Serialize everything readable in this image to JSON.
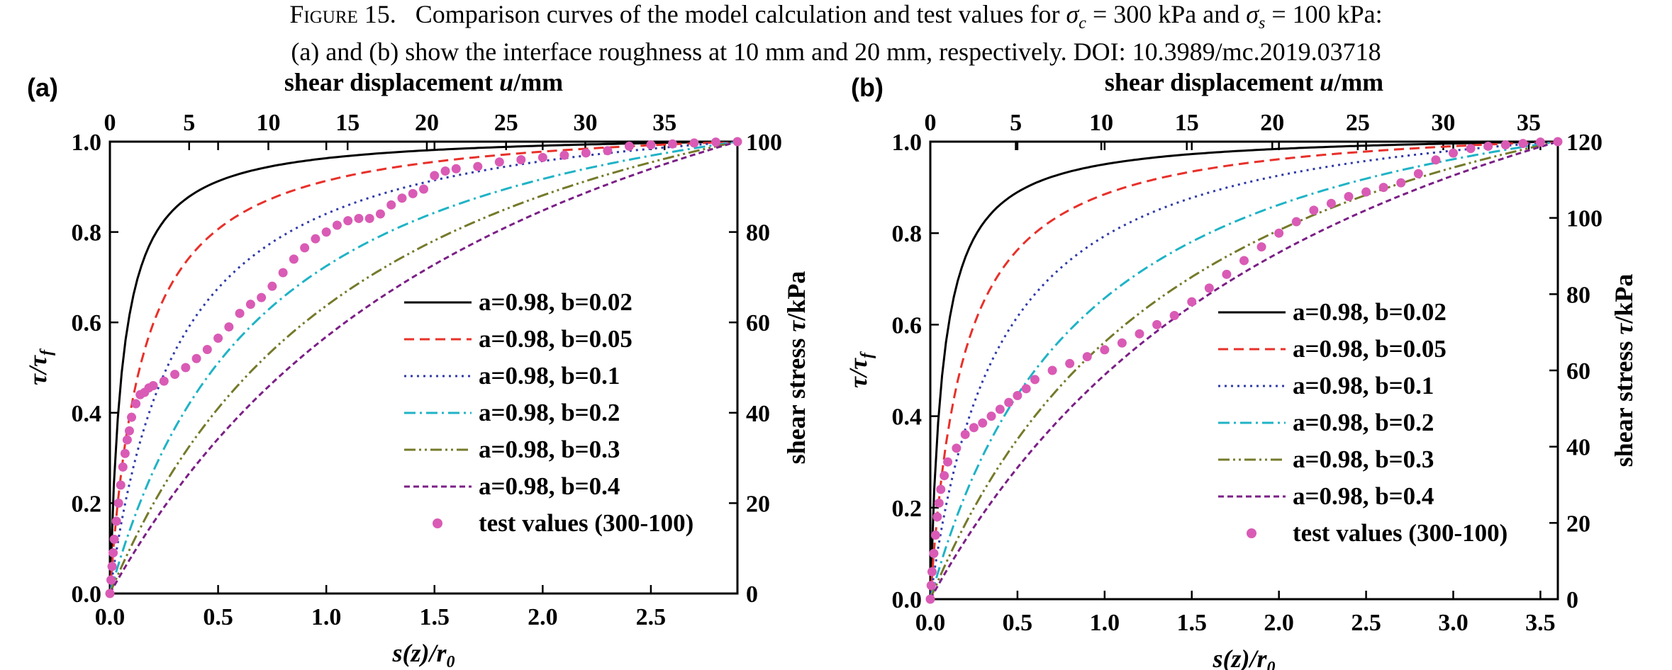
{
  "caption": {
    "fig_label": "Figure 15.",
    "line1_pre": "Comparison curves of the model calculation and test values for ",
    "sym_sigma": "σ",
    "sub_c": "c",
    "mid1": " = 300 kPa and ",
    "sub_s": "s",
    "line1_post": " = 100 kPa:",
    "line2": "(a) and (b) show the interface roughness at 10 mm and 20 mm, respectively.  DOI: 10.3989/mc.2019.03718"
  },
  "chart_data": [
    {
      "panel_label": "(a)",
      "type": "line",
      "xlabel": "s(z)/r",
      "xlabel_sub": "0",
      "ylabel": "τ/τ",
      "ylabel_sub": "f",
      "top_xlabel_pre": "shear displacement ",
      "top_xlabel_var": "u",
      "top_xlabel_unit": "/mm",
      "right_ylabel_pre": "shear stress ",
      "right_ylabel_var": "τ",
      "right_ylabel_unit": "/kPa",
      "xlim": [
        0,
        2.9
      ],
      "ylim": [
        0,
        1.0
      ],
      "xticks": [
        "0.0",
        "0.5",
        "1.0",
        "1.5",
        "2.0",
        "2.5"
      ],
      "yticks": [
        "0.0",
        "0.2",
        "0.4",
        "0.6",
        "0.8",
        "1.0"
      ],
      "top_xlim": [
        0,
        39.6
      ],
      "top_xticks": [
        "0",
        "5",
        "10",
        "15",
        "20",
        "25",
        "30",
        "35"
      ],
      "right_ylim": [
        0,
        100
      ],
      "right_yticks": [
        "0",
        "20",
        "40",
        "60",
        "80",
        "100"
      ],
      "legend_position": "center-right",
      "series": [
        {
          "name": "a=0.98, b=0.02",
          "color": "#000000",
          "dash": "solid",
          "model": {
            "a": 0.98,
            "b": 0.02
          }
        },
        {
          "name": "a=0.98, b=0.05",
          "color": "#e8302a",
          "dash": "dash",
          "model": {
            "a": 0.98,
            "b": 0.05
          }
        },
        {
          "name": "a=0.98, b=0.1",
          "color": "#2f3aa8",
          "dash": "dot",
          "model": {
            "a": 0.98,
            "b": 0.1
          }
        },
        {
          "name": "a=0.98, b=0.2",
          "color": "#1fb3c6",
          "dash": "dashdot",
          "model": {
            "a": 0.98,
            "b": 0.2
          }
        },
        {
          "name": "a=0.98, b=0.3",
          "color": "#757a2a",
          "dash": "dashdotdot",
          "model": {
            "a": 0.98,
            "b": 0.3
          }
        },
        {
          "name": "a=0.98, b=0.4",
          "color": "#7b1f86",
          "dash": "shortdash",
          "model": {
            "a": 0.98,
            "b": 0.4
          }
        }
      ],
      "scatter": {
        "name": "test values (300-100)",
        "color": "#d95bb5",
        "x": [
          0.0,
          0.005,
          0.01,
          0.015,
          0.02,
          0.03,
          0.04,
          0.05,
          0.06,
          0.07,
          0.08,
          0.09,
          0.1,
          0.12,
          0.14,
          0.16,
          0.18,
          0.2,
          0.25,
          0.3,
          0.35,
          0.4,
          0.45,
          0.5,
          0.55,
          0.6,
          0.65,
          0.7,
          0.75,
          0.8,
          0.85,
          0.9,
          0.95,
          1.0,
          1.05,
          1.1,
          1.15,
          1.2,
          1.25,
          1.3,
          1.35,
          1.4,
          1.45,
          1.5,
          1.55,
          1.6,
          1.7,
          1.8,
          1.9,
          2.0,
          2.1,
          2.2,
          2.3,
          2.4,
          2.5,
          2.6,
          2.7,
          2.8,
          2.9
        ],
        "y": [
          0.0,
          0.03,
          0.06,
          0.09,
          0.12,
          0.16,
          0.2,
          0.24,
          0.28,
          0.31,
          0.34,
          0.36,
          0.39,
          0.42,
          0.44,
          0.445,
          0.455,
          0.46,
          0.47,
          0.485,
          0.5,
          0.52,
          0.54,
          0.565,
          0.59,
          0.62,
          0.64,
          0.655,
          0.68,
          0.71,
          0.74,
          0.765,
          0.785,
          0.8,
          0.815,
          0.825,
          0.83,
          0.83,
          0.84,
          0.86,
          0.875,
          0.885,
          0.895,
          0.925,
          0.935,
          0.94,
          0.945,
          0.955,
          0.96,
          0.965,
          0.97,
          0.975,
          0.98,
          0.99,
          0.993,
          0.995,
          0.997,
          0.999,
          1.0
        ]
      }
    },
    {
      "panel_label": "(b)",
      "type": "line",
      "xlabel": "s(z)/r",
      "xlabel_sub": "0",
      "ylabel": "τ/τ",
      "ylabel_sub": "f",
      "top_xlabel_pre": "shear displacement ",
      "top_xlabel_var": "u",
      "top_xlabel_unit": "/mm",
      "right_ylabel_pre": "shear stress ",
      "right_ylabel_var": "τ",
      "right_ylabel_unit": "/kPa",
      "xlim": [
        0,
        3.6
      ],
      "ylim": [
        0,
        1.0
      ],
      "xticks": [
        "0.0",
        "0.5",
        "1.0",
        "1.5",
        "2.0",
        "2.5",
        "3.0",
        "3.5"
      ],
      "yticks": [
        "0.0",
        "0.2",
        "0.4",
        "0.6",
        "0.8",
        "1.0"
      ],
      "top_xlim": [
        0,
        36.7
      ],
      "top_xticks": [
        "0",
        "5",
        "10",
        "15",
        "20",
        "25",
        "30",
        "35"
      ],
      "right_ylim": [
        0,
        120
      ],
      "right_yticks": [
        "0",
        "20",
        "40",
        "60",
        "80",
        "100",
        "120"
      ],
      "legend_position": "center-right",
      "series": [
        {
          "name": "a=0.98, b=0.02",
          "color": "#000000",
          "dash": "solid",
          "model": {
            "a": 0.98,
            "b": 0.02
          }
        },
        {
          "name": "a=0.98, b=0.05",
          "color": "#e8302a",
          "dash": "dash",
          "model": {
            "a": 0.98,
            "b": 0.05
          }
        },
        {
          "name": "a=0.98, b=0.1",
          "color": "#2f3aa8",
          "dash": "dot",
          "model": {
            "a": 0.98,
            "b": 0.1
          }
        },
        {
          "name": "a=0.98, b=0.2",
          "color": "#1fb3c6",
          "dash": "dashdot",
          "model": {
            "a": 0.98,
            "b": 0.2
          }
        },
        {
          "name": "a=0.98, b=0.3",
          "color": "#757a2a",
          "dash": "dashdotdot",
          "model": {
            "a": 0.98,
            "b": 0.3
          }
        },
        {
          "name": "a=0.98, b=0.4",
          "color": "#7b1f86",
          "dash": "shortdash",
          "model": {
            "a": 0.98,
            "b": 0.4
          }
        }
      ],
      "scatter": {
        "name": "test values (300-100)",
        "color": "#d95bb5",
        "x": [
          0.0,
          0.005,
          0.01,
          0.02,
          0.03,
          0.04,
          0.05,
          0.06,
          0.08,
          0.1,
          0.15,
          0.2,
          0.25,
          0.3,
          0.35,
          0.4,
          0.45,
          0.5,
          0.55,
          0.6,
          0.7,
          0.8,
          0.9,
          1.0,
          1.1,
          1.2,
          1.3,
          1.4,
          1.5,
          1.6,
          1.7,
          1.8,
          1.9,
          2.0,
          2.1,
          2.2,
          2.3,
          2.4,
          2.5,
          2.6,
          2.7,
          2.8,
          2.9,
          3.0,
          3.1,
          3.2,
          3.3,
          3.4,
          3.5,
          3.6
        ],
        "y": [
          0.0,
          0.03,
          0.06,
          0.1,
          0.14,
          0.18,
          0.21,
          0.24,
          0.27,
          0.3,
          0.33,
          0.36,
          0.375,
          0.385,
          0.4,
          0.415,
          0.43,
          0.445,
          0.46,
          0.48,
          0.5,
          0.515,
          0.53,
          0.545,
          0.56,
          0.58,
          0.6,
          0.62,
          0.65,
          0.68,
          0.71,
          0.74,
          0.77,
          0.8,
          0.825,
          0.85,
          0.865,
          0.88,
          0.89,
          0.9,
          0.91,
          0.93,
          0.96,
          0.975,
          0.985,
          0.99,
          0.993,
          0.996,
          0.999,
          1.0
        ]
      }
    }
  ]
}
